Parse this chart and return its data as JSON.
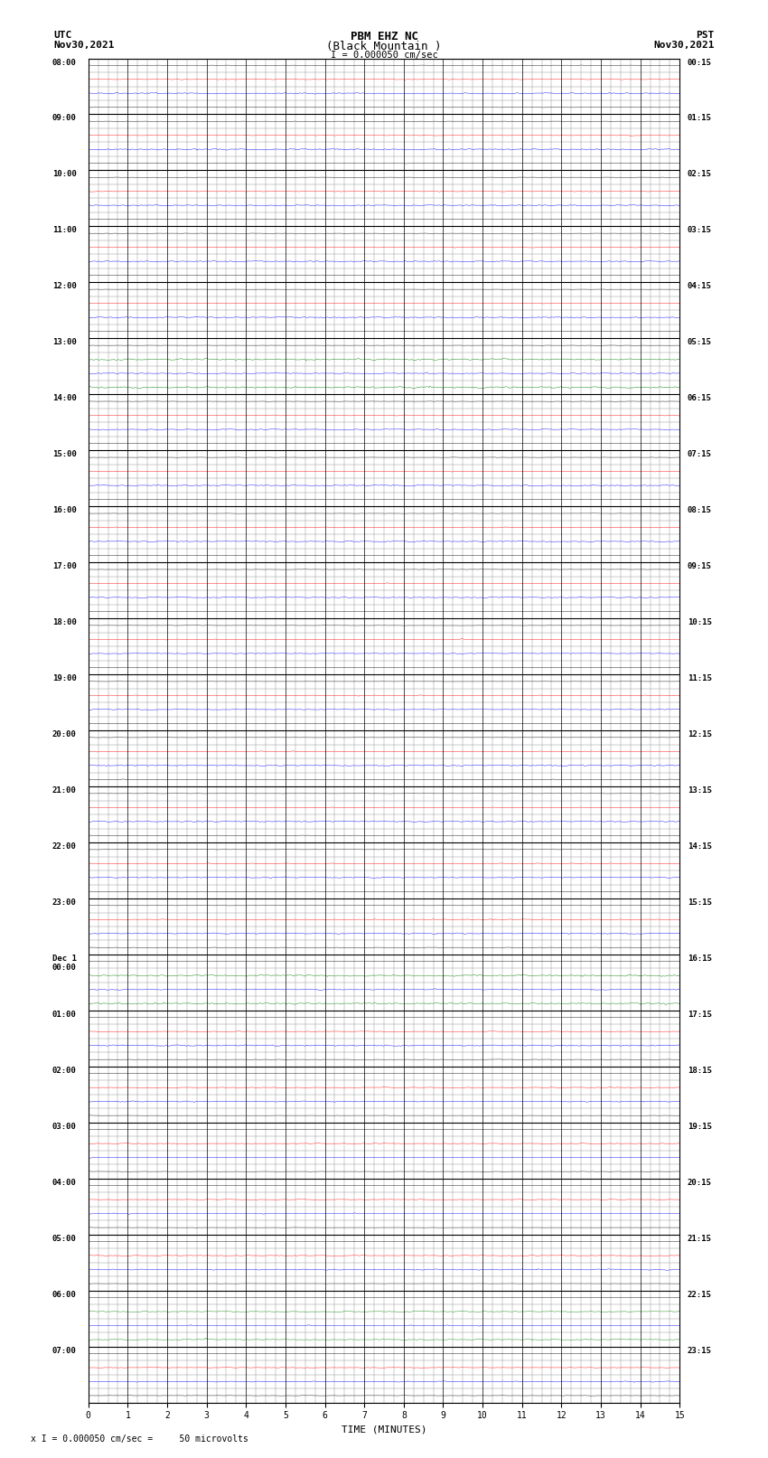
{
  "title_line1": "PBM EHZ NC",
  "title_line2": "(Black Mountain )",
  "scale_label": "I = 0.000050 cm/sec",
  "utc_label": "UTC",
  "utc_date": "Nov30,2021",
  "pst_label": "PST",
  "pst_date": "Nov30,2021",
  "bottom_label": "x I = 0.000050 cm/sec =     50 microvolts",
  "xlabel": "TIME (MINUTES)",
  "xmin": 0,
  "xmax": 15,
  "xticks": [
    0,
    1,
    2,
    3,
    4,
    5,
    6,
    7,
    8,
    9,
    10,
    11,
    12,
    13,
    14,
    15
  ],
  "left_times_labels": [
    [
      "08:00",
      0
    ],
    [
      "09:00",
      4
    ],
    [
      "10:00",
      8
    ],
    [
      "11:00",
      12
    ],
    [
      "12:00",
      16
    ],
    [
      "13:00",
      20
    ],
    [
      "14:00",
      24
    ],
    [
      "15:00",
      28
    ],
    [
      "16:00",
      32
    ],
    [
      "17:00",
      36
    ],
    [
      "18:00",
      40
    ],
    [
      "19:00",
      44
    ],
    [
      "20:00",
      48
    ],
    [
      "21:00",
      52
    ],
    [
      "22:00",
      56
    ],
    [
      "23:00",
      60
    ],
    [
      "Dec 1\n00:00",
      64
    ],
    [
      "01:00",
      68
    ],
    [
      "02:00",
      72
    ],
    [
      "03:00",
      76
    ],
    [
      "04:00",
      80
    ],
    [
      "05:00",
      84
    ],
    [
      "06:00",
      88
    ],
    [
      "07:00",
      92
    ]
  ],
  "right_times_labels": [
    [
      "00:15",
      0
    ],
    [
      "01:15",
      4
    ],
    [
      "02:15",
      8
    ],
    [
      "03:15",
      12
    ],
    [
      "04:15",
      16
    ],
    [
      "05:15",
      20
    ],
    [
      "06:15",
      24
    ],
    [
      "07:15",
      28
    ],
    [
      "08:15",
      32
    ],
    [
      "09:15",
      36
    ],
    [
      "10:15",
      40
    ],
    [
      "11:15",
      44
    ],
    [
      "12:15",
      48
    ],
    [
      "13:15",
      52
    ],
    [
      "14:15",
      56
    ],
    [
      "15:15",
      60
    ],
    [
      "16:15",
      64
    ],
    [
      "17:15",
      68
    ],
    [
      "18:15",
      72
    ],
    [
      "19:15",
      76
    ],
    [
      "20:15",
      80
    ],
    [
      "21:15",
      84
    ],
    [
      "22:15",
      88
    ],
    [
      "23:15",
      92
    ]
  ],
  "n_rows": 96,
  "fig_width": 8.5,
  "fig_height": 16.13,
  "bg_color": "white",
  "grid_color": "#888888",
  "noise_amplitude": 0.08,
  "seed": 42
}
